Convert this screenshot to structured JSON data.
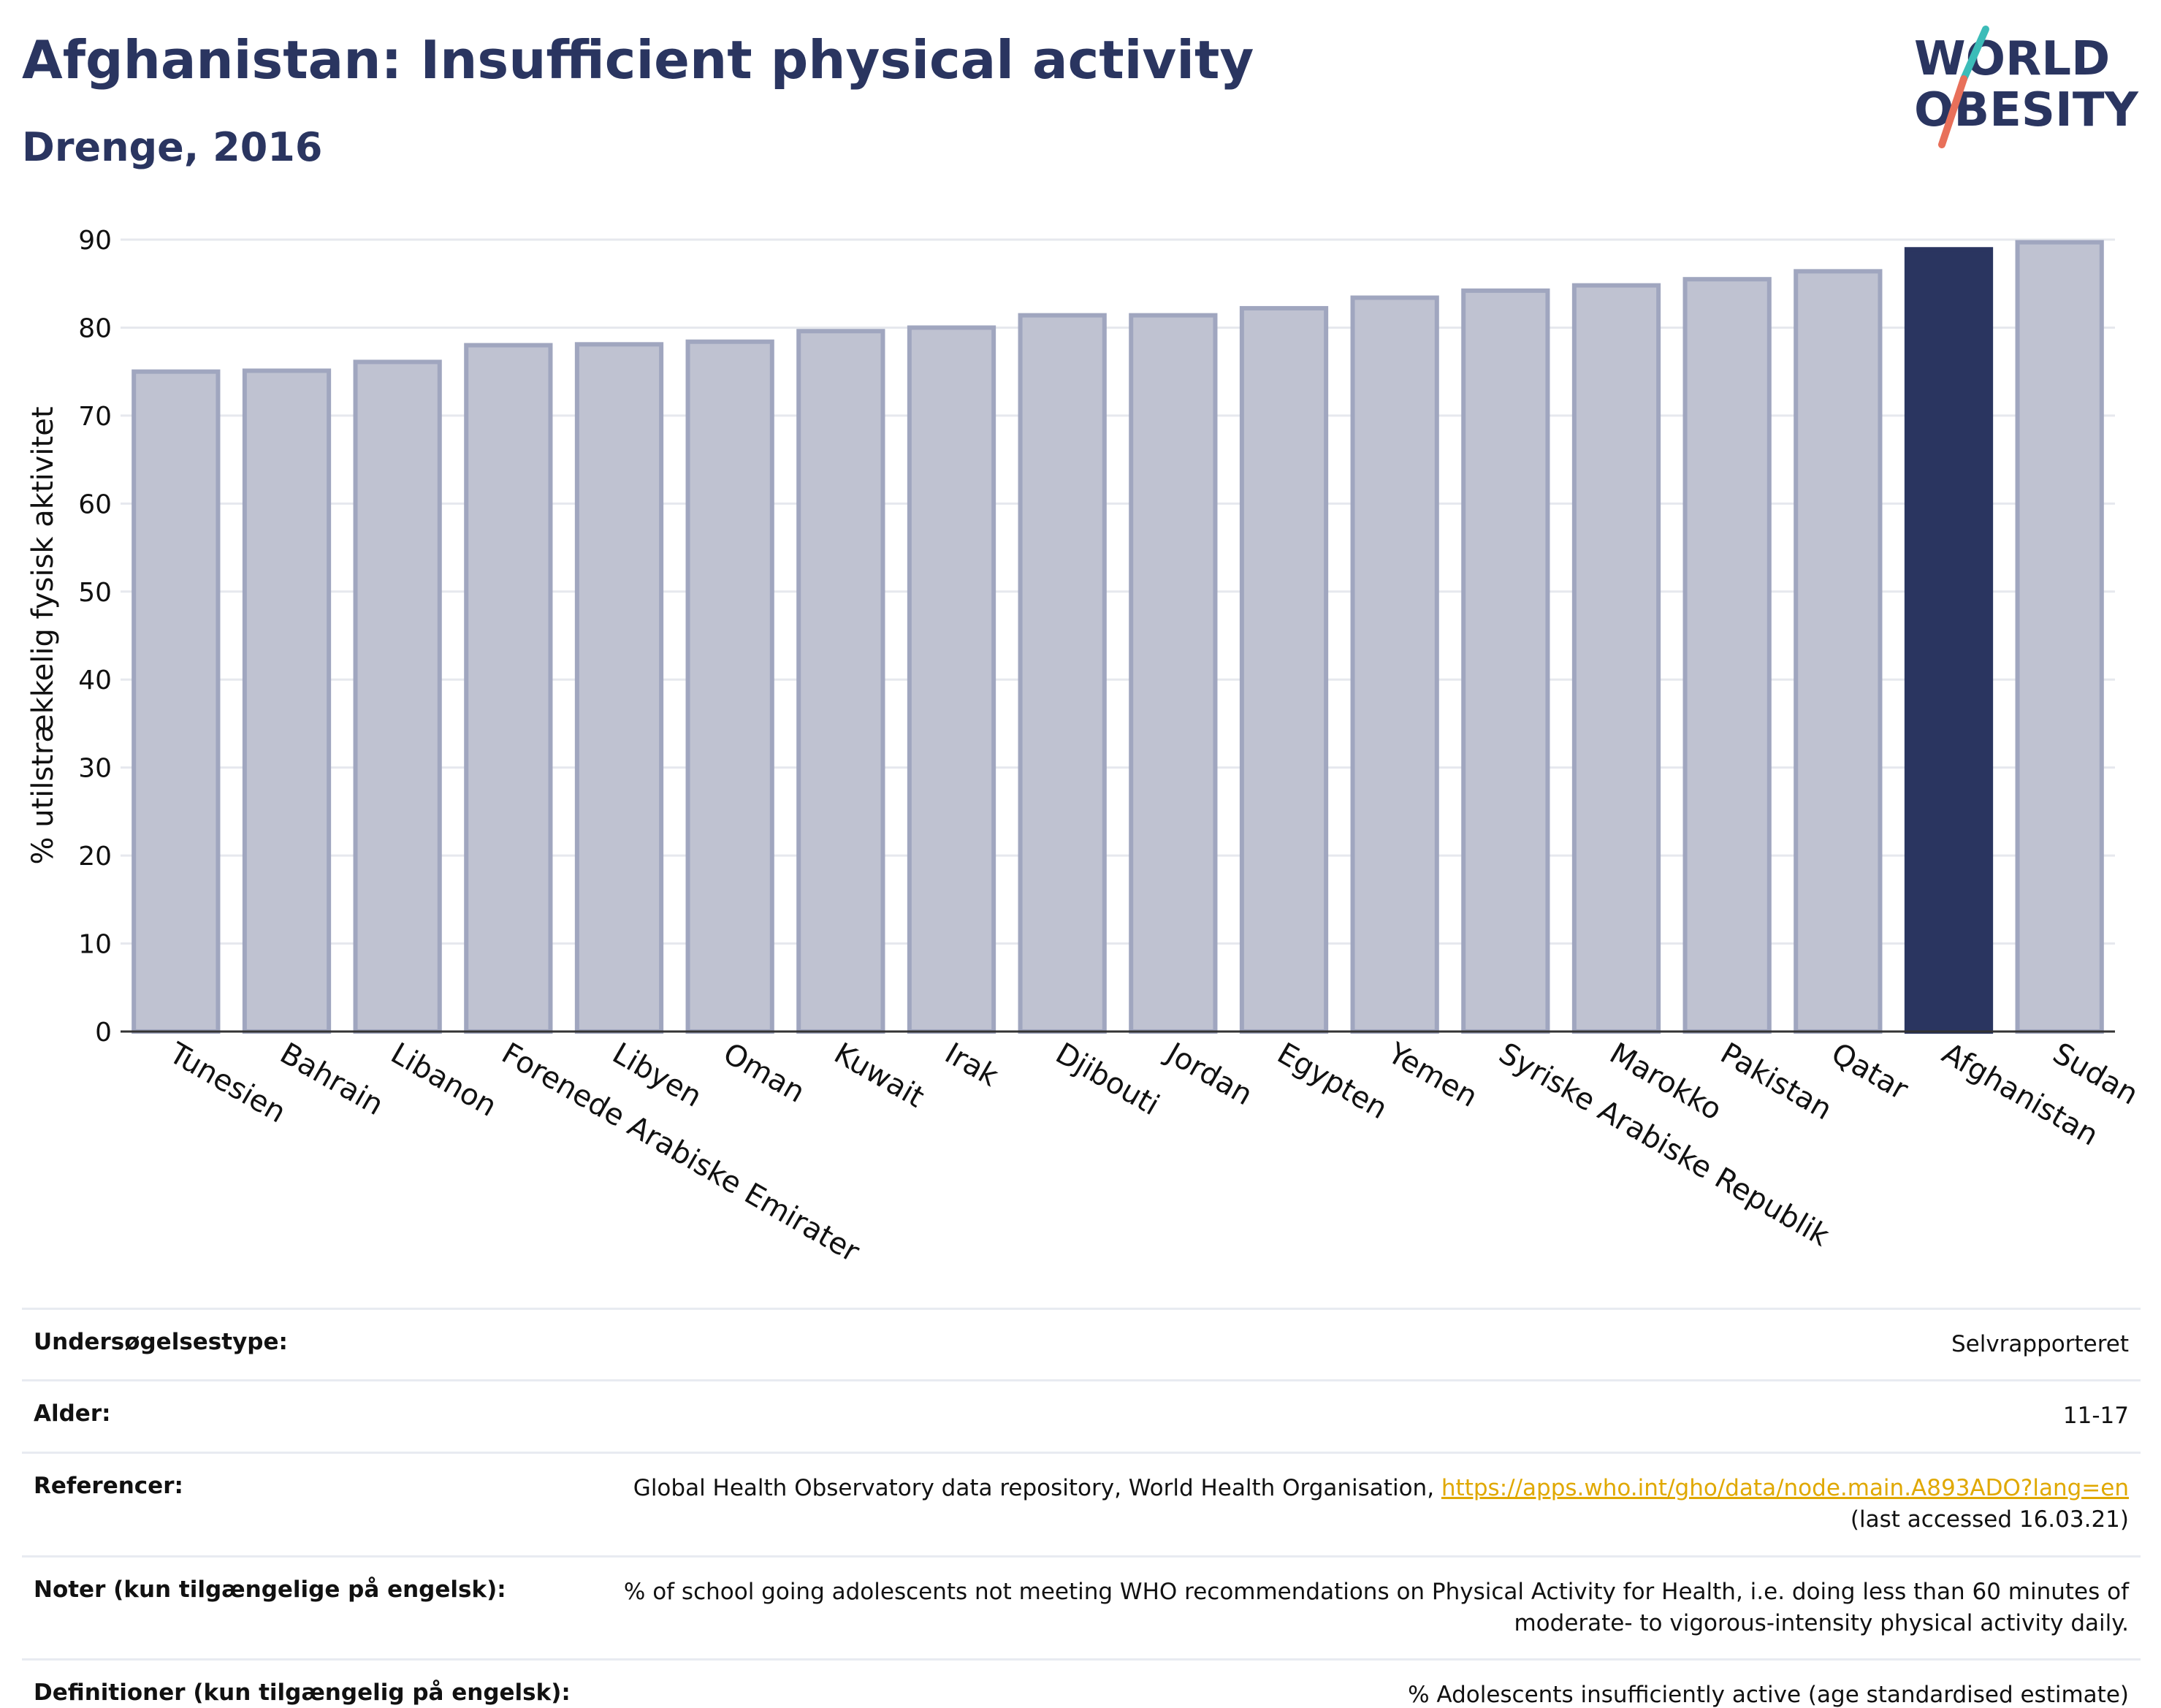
{
  "header": {
    "title": "Afghanistan: Insufficient physical activity",
    "subtitle": "Drenge, 2016"
  },
  "logo": {
    "line1": "WORLD",
    "line2": "OBESITY",
    "colors": {
      "text": "#2a3560",
      "slash_teal": "#3cbcb8",
      "slash_coral": "#e8705a"
    }
  },
  "chart_data": {
    "type": "bar",
    "ylabel": "% utilstrækkelig fysisk aktivitet",
    "xlabel": "",
    "ylim": [
      0,
      90
    ],
    "yticks": [
      0,
      10,
      20,
      30,
      40,
      50,
      60,
      70,
      80,
      90
    ],
    "grid": true,
    "categories": [
      "Tunesien",
      "Bahrain",
      "Libanon",
      "Forenede Arabiske Emirater",
      "Libyen",
      "Oman",
      "Kuwait",
      "Irak",
      "Djibouti",
      "Jordan",
      "Egypten",
      "Yemen",
      "Syriske Arabiske Republik",
      "Marokko",
      "Pakistan",
      "Qatar",
      "Afghanistan",
      "Sudan"
    ],
    "values": [
      75.0,
      75.1,
      76.1,
      78.0,
      78.1,
      78.4,
      79.6,
      80.0,
      81.4,
      81.4,
      82.2,
      83.4,
      84.2,
      84.8,
      85.5,
      86.4,
      88.9,
      89.7
    ],
    "highlight": "Afghanistan",
    "colors": {
      "bar": "#bfc2d1",
      "bar_border": "#a0a6bf",
      "highlight": "#2a3560"
    }
  },
  "info": {
    "rows": [
      {
        "label": "Undersøgelsestype:",
        "value": "Selvrapporteret"
      },
      {
        "label": "Alder:",
        "value": "11-17"
      },
      {
        "label": "Referencer:",
        "value_prefix": "Global Health Observatory data repository, World Health Organisation, ",
        "link": "https://apps.who.int/gho/data/node.main.A893ADO?lang=en",
        "value_suffix": "(last accessed 16.03.21)"
      },
      {
        "label": "Noter (kun tilgængelige på engelsk):",
        "value": "% of school going adolescents not meeting WHO recommendations on Physical Activity for Health, i.e. doing less than 60 minutes of moderate- to vigorous-intensity physical activity daily."
      },
      {
        "label": "Definitioner (kun tilgængelig på engelsk):",
        "value": "% Adolescents insufficiently active (age standardised estimate)"
      }
    ]
  }
}
